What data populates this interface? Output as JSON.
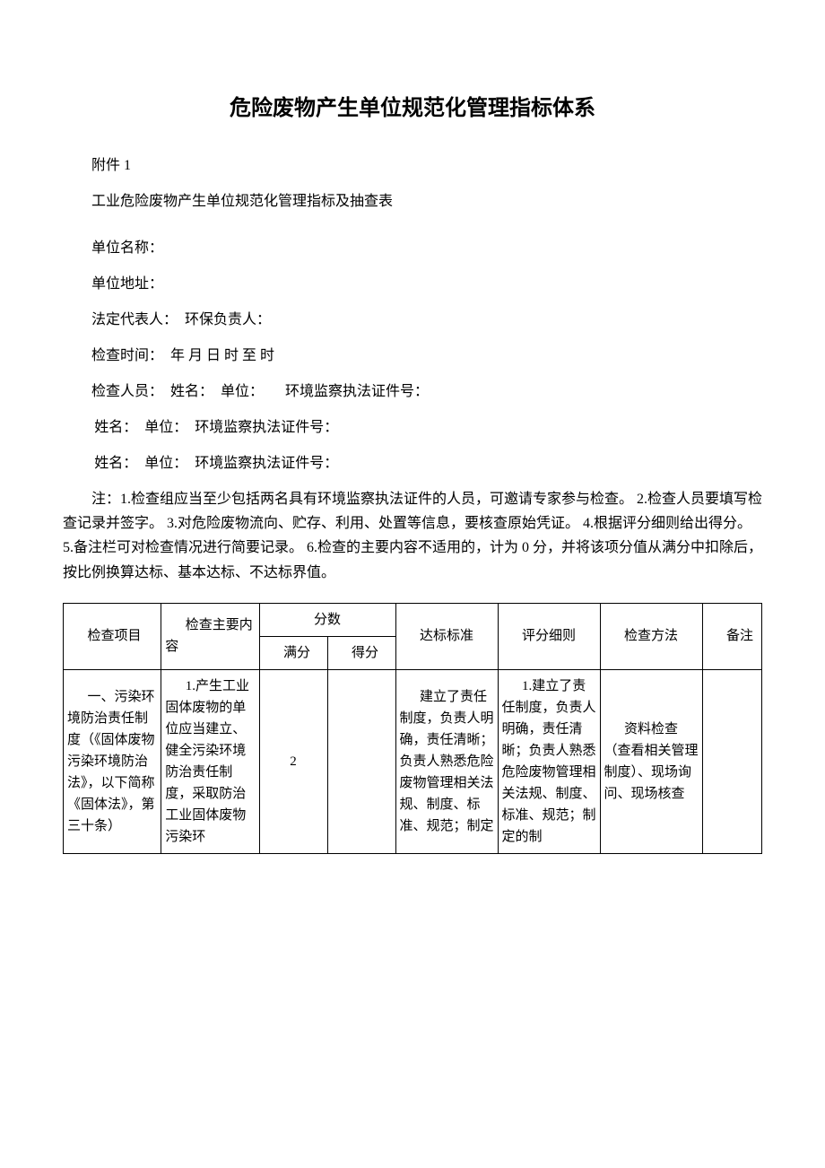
{
  "title": "危险废物产生单位规范化管理指标体系",
  "attachment": "附件 1",
  "subtitle": "工业危险废物产生单位规范化管理指标及抽查表",
  "fields": {
    "unit_name": "单位名称：",
    "unit_address": "单位地址：",
    "legal_rep": "法定代表人：　环保负责人：",
    "check_time": "检查时间：　年 月 日 时 至 时",
    "check_personnel": "检查人员：　姓名：　单位：　　环境监察执法证件号：",
    "personnel_line": "姓名：　单位：　环境监察执法证件号："
  },
  "note": "注：1.检查组应当至少包括两名具有环境监察执法证件的人员，可邀请专家参与检查。 2.检查人员要填写检查记录并签字。 3.对危险废物流向、贮存、利用、处置等信息，要核查原始凭证。 4.根据评分细则给出得分。 5.备注栏可对检查情况进行简要记录。 6.检查的主要内容不适用的，计为 0 分，并将该项分值从满分中扣除后，按比例换算达标、基本达标、不达标界值。",
  "table": {
    "headers": {
      "col1": "检查项目",
      "col2": "检查主要内容",
      "score": "分数",
      "full_score": "满分",
      "actual_score": "得分",
      "standard": "达标标准",
      "rules": "评分细则",
      "method": "检查方法",
      "remark": "备注"
    },
    "row1": {
      "item": "一、污染环境防治责任制度（《固体废物污染环境防治法》，以下简称《固体法》，第三十条）",
      "content": "1.产生工业固体废物的单位应当建立、健全污染环境防治责任制度，采取防治工业固体废物污染环",
      "full_score": "2",
      "actual_score": "",
      "standard": "建立了责任制度，负责人明确，责任清晰；负责人熟悉危险废物管理相关法规、制度、标准、规范；制定",
      "rules": "1.建立了责任制度，负责人明确，责任清晰；负责人熟悉危险废物管理相关法规、制度、标准、规范；制定的制",
      "method": "资料检查（查看相关管理制度）、现场询问、现场核查",
      "remark": ""
    },
    "colors": {
      "text": "#000000",
      "background": "#ffffff",
      "border": "#000000",
      "watermark": "#f0f0f0"
    },
    "fonts": {
      "title_size": 24,
      "body_size": 16,
      "table_size": 15,
      "family": "SimSun"
    }
  }
}
